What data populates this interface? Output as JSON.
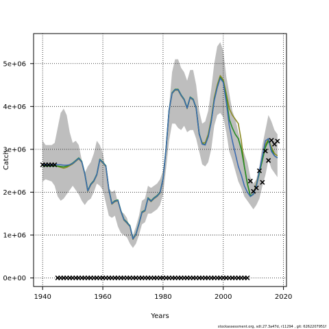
{
  "chart_data": {
    "type": "line",
    "xlabel": "Years",
    "ylabel": "Catch",
    "xlim": [
      1937,
      2021
    ],
    "ylim": [
      -200000,
      5700000
    ],
    "grid": true,
    "x_ticks": [
      1940,
      1960,
      1980,
      2000,
      2020
    ],
    "x_tick_labels": [
      "1940",
      "1960",
      "1980",
      "2000",
      "2020"
    ],
    "y_ticks": [
      0,
      1000000,
      2000000,
      3000000,
      4000000,
      5000000
    ],
    "y_tick_labels": [
      "0e+00",
      "1e+06",
      "2e+06",
      "3e+06",
      "4e+06",
      "5e+06"
    ],
    "confidence_band": {
      "color": "#bebebe",
      "x": [
        1940,
        1941,
        1943,
        1944,
        1945,
        1946,
        1947,
        1948,
        1949,
        1950,
        1951,
        1952,
        1953,
        1954,
        1955,
        1956,
        1957,
        1958,
        1959,
        1960,
        1961,
        1962,
        1963,
        1964,
        1965,
        1966,
        1967,
        1968,
        1969,
        1970,
        1971,
        1972,
        1973,
        1974,
        1975,
        1976,
        1977,
        1978,
        1979,
        1980,
        1981,
        1982,
        1983,
        1984,
        1985,
        1986,
        1987,
        1988,
        1989,
        1990,
        1991,
        1992,
        1993,
        1994,
        1995,
        1996,
        1997,
        1998,
        1999,
        2000,
        2001,
        2002,
        2003,
        2004,
        2005,
        2006,
        2007,
        2008,
        2009,
        2010,
        2011,
        2012,
        2013,
        2014,
        2015,
        2016,
        2017,
        2018
      ],
      "upper": [
        3200000,
        3100000,
        3100000,
        3150000,
        3500000,
        3850000,
        3950000,
        3800000,
        3400000,
        3150000,
        3200000,
        3100000,
        2750000,
        2450000,
        2600000,
        2700000,
        2900000,
        3200000,
        3100000,
        2900000,
        2500000,
        2100000,
        2000000,
        2050000,
        1750000,
        1550000,
        1500000,
        1400000,
        1150000,
        1000000,
        1200000,
        1450000,
        1800000,
        1850000,
        2150000,
        2100000,
        2150000,
        2200000,
        2300000,
        2500000,
        3050000,
        4000000,
        4800000,
        5100000,
        5100000,
        4900000,
        4800000,
        4600000,
        4850000,
        4850000,
        4500000,
        3900000,
        3600000,
        3650000,
        3900000,
        4400000,
        5000000,
        5400000,
        5500000,
        5300000,
        4700000,
        4300000,
        3900000,
        3700000,
        3400000,
        3100000,
        2900000,
        2700000,
        2350000,
        2200000,
        2300000,
        2600000,
        3100000,
        3450000,
        3800000,
        3650000,
        3450000,
        3350000
      ],
      "lower": [
        2250000,
        2300000,
        2250000,
        2150000,
        1900000,
        1800000,
        1850000,
        1950000,
        2050000,
        2150000,
        2050000,
        1950000,
        1800000,
        1700000,
        1800000,
        1850000,
        2000000,
        2200000,
        2150000,
        2050000,
        1750000,
        1450000,
        1400000,
        1450000,
        1200000,
        1050000,
        1000000,
        950000,
        800000,
        700000,
        800000,
        1000000,
        1250000,
        1300000,
        1500000,
        1500000,
        1550000,
        1600000,
        1700000,
        1950000,
        2550000,
        3200000,
        3600000,
        3600000,
        3500000,
        3450000,
        3550000,
        3400000,
        3450000,
        3450000,
        3250000,
        2950000,
        2650000,
        2600000,
        2700000,
        3000000,
        3550000,
        3800000,
        3850000,
        3750000,
        3400000,
        2950000,
        2750000,
        2500000,
        2250000,
        2100000,
        1900000,
        1800000,
        1700000,
        1600000,
        1700000,
        1850000,
        2150000,
        2400000,
        2750000,
        2550000,
        2450000,
        2350000
      ]
    },
    "series": [
      {
        "color": "#8a8a22",
        "x": [
          1940,
          1941,
          1943,
          1944,
          1945,
          1946,
          1947,
          1948,
          1949,
          1950,
          1951,
          1952,
          1953,
          1954,
          1955,
          1956,
          1957,
          1958,
          1959,
          1960,
          1961,
          1962,
          1963,
          1964,
          1965,
          1966,
          1967,
          1968,
          1969,
          1970,
          1971,
          1972,
          1973,
          1974,
          1975,
          1976,
          1977,
          1978,
          1979,
          1980,
          1981,
          1982,
          1983,
          1984,
          1985,
          1986,
          1987,
          1988,
          1989,
          1990,
          1991,
          1992,
          1993,
          1994,
          1995,
          1996,
          1997,
          1998,
          1999,
          2000,
          2001,
          2002,
          2003,
          2004,
          2005,
          2006,
          2007,
          2008,
          2009,
          2010,
          2011,
          2012,
          2013,
          2014,
          2015,
          2016,
          2017,
          2018
        ],
        "values": [
          2630000,
          2630000,
          2630000,
          2630000,
          2600000,
          2580000,
          2560000,
          2580000,
          2620000,
          2660000,
          2720000,
          2780000,
          2700000,
          2420000,
          2020000,
          2170000,
          2250000,
          2400000,
          2750000,
          2680000,
          2600000,
          2050000,
          1720000,
          1780000,
          1800000,
          1550000,
          1350000,
          1280000,
          1200000,
          900000,
          1010000,
          1250000,
          1520000,
          1560000,
          1850000,
          1780000,
          1850000,
          1900000,
          1980000,
          2300000,
          3000000,
          3900000,
          4300000,
          4380000,
          4380000,
          4250000,
          4150000,
          3950000,
          4200000,
          4150000,
          3950000,
          3350000,
          3150000,
          3150000,
          3350000,
          3700000,
          4200000,
          4500000,
          4720000,
          4620000,
          4300000,
          3950000,
          3800000,
          3700000,
          3600000,
          3200000,
          2600000,
          2200000,
          1900000,
          1950000,
          2200000,
          2500000,
          2800000,
          3100000,
          3250000,
          3050000,
          2900000,
          2850000
        ]
      },
      {
        "color": "#228b22",
        "x": [
          1940,
          1941,
          1943,
          1944,
          1945,
          1946,
          1947,
          1948,
          1949,
          1950,
          1951,
          1952,
          1953,
          1954,
          1955,
          1956,
          1957,
          1958,
          1959,
          1960,
          1961,
          1962,
          1963,
          1964,
          1965,
          1966,
          1967,
          1968,
          1969,
          1970,
          1971,
          1972,
          1973,
          1974,
          1975,
          1976,
          1977,
          1978,
          1979,
          1980,
          1981,
          1982,
          1983,
          1984,
          1985,
          1986,
          1987,
          1988,
          1989,
          1990,
          1991,
          1992,
          1993,
          1994,
          1995,
          1996,
          1997,
          1998,
          1999,
          2000,
          2001,
          2002,
          2003,
          2004,
          2005,
          2006,
          2007,
          2008,
          2009,
          2010,
          2011,
          2012,
          2013,
          2014,
          2015,
          2016,
          2017,
          2018
        ],
        "values": [
          2610000,
          2610000,
          2610000,
          2610000,
          2610000,
          2600000,
          2590000,
          2610000,
          2640000,
          2680000,
          2740000,
          2800000,
          2720000,
          2440000,
          2040000,
          2190000,
          2270000,
          2420000,
          2770000,
          2700000,
          2620000,
          2070000,
          1740000,
          1800000,
          1820000,
          1570000,
          1370000,
          1300000,
          1220000,
          920000,
          1030000,
          1270000,
          1540000,
          1580000,
          1870000,
          1800000,
          1870000,
          1920000,
          2000000,
          2320000,
          3020000,
          3920000,
          4320000,
          4400000,
          4400000,
          4270000,
          4170000,
          3970000,
          4220000,
          4170000,
          3970000,
          3370000,
          3130000,
          3110000,
          3300000,
          3650000,
          4150000,
          4450000,
          4680000,
          4580000,
          4200000,
          3700000,
          3500000,
          3350000,
          3250000,
          3000000,
          2600000,
          2200000,
          1920000,
          1950000,
          2150000,
          2450000,
          2750000,
          3050000,
          3200000,
          3000000,
          2850000,
          2800000
        ]
      },
      {
        "color": "#3a6ab0",
        "x": [
          1940,
          1941,
          1943,
          1944,
          1945,
          1946,
          1947,
          1948,
          1949,
          1950,
          1951,
          1952,
          1953,
          1954,
          1955,
          1956,
          1957,
          1958,
          1959,
          1960,
          1961,
          1962,
          1963,
          1964,
          1965,
          1966,
          1967,
          1968,
          1969,
          1970,
          1971,
          1972,
          1973,
          1974,
          1975,
          1976,
          1977,
          1978,
          1979,
          1980,
          1981,
          1982,
          1983,
          1984,
          1985,
          1986,
          1987,
          1988,
          1989,
          1990,
          1991,
          1992,
          1993,
          1994,
          1995,
          1996,
          1997,
          1998,
          1999,
          2000,
          2001,
          2002,
          2003,
          2004,
          2005,
          2006,
          2007,
          2008,
          2009,
          2010,
          2011,
          2012,
          2013,
          2014,
          2015,
          2016,
          2017,
          2018
        ],
        "values": [
          2640000,
          2640000,
          2640000,
          2650000,
          2640000,
          2640000,
          2630000,
          2630000,
          2640000,
          2670000,
          2730000,
          2790000,
          2710000,
          2430000,
          2030000,
          2180000,
          2260000,
          2410000,
          2760000,
          2690000,
          2610000,
          2060000,
          1730000,
          1790000,
          1810000,
          1560000,
          1360000,
          1290000,
          1210000,
          910000,
          1020000,
          1260000,
          1530000,
          1570000,
          1860000,
          1790000,
          1860000,
          1910000,
          1990000,
          2310000,
          3010000,
          3910000,
          4310000,
          4390000,
          4390000,
          4260000,
          4160000,
          3960000,
          4210000,
          4160000,
          3960000,
          3360000,
          3120000,
          3100000,
          3290000,
          3640000,
          4140000,
          4440000,
          4660000,
          4560000,
          4100000,
          3550000,
          3200000,
          2900000,
          2600000,
          2400000,
          2150000,
          2000000,
          1900000,
          1950000,
          2150000,
          2500000,
          2850000,
          3200000,
          3250000,
          2950000,
          2850000,
          2800000
        ]
      }
    ],
    "observed_catch": {
      "marker": "x",
      "x": [
        1940,
        1941,
        1942,
        1943,
        1944,
        2009,
        2010,
        2011,
        2012,
        2013,
        2014,
        2015,
        2016,
        2017,
        2018
      ],
      "values": [
        2640000,
        2640000,
        2640000,
        2640000,
        2640000,
        2260000,
        2020000,
        2100000,
        2500000,
        2230000,
        2960000,
        2740000,
        3210000,
        3120000,
        3190000
      ]
    },
    "zero_markers": {
      "marker": "x",
      "x": [
        1945,
        1946,
        1947,
        1948,
        1949,
        1950,
        1951,
        1952,
        1953,
        1954,
        1955,
        1956,
        1957,
        1958,
        1959,
        1960,
        1961,
        1962,
        1963,
        1964,
        1965,
        1966,
        1967,
        1968,
        1969,
        1970,
        1971,
        1972,
        1973,
        1974,
        1975,
        1976,
        1977,
        1978,
        1979,
        1980,
        1981,
        1982,
        1983,
        1984,
        1985,
        1986,
        1987,
        1988,
        1989,
        1990,
        1991,
        1992,
        1993,
        1994,
        1995,
        1996,
        1997,
        1998,
        1999,
        2000,
        2001,
        2002,
        2003,
        2004,
        2005,
        2006,
        2007,
        2008
      ],
      "value": 0
    },
    "footer": "stockassessment.org, sdt.27.3a47d, r11294 , git: 6262207951f"
  }
}
